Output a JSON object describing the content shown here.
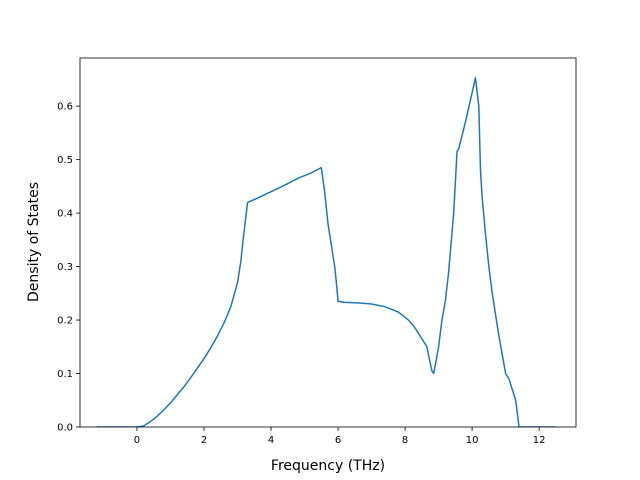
{
  "chart_data": {
    "type": "line",
    "title": "",
    "xlabel": "Frequency (THz)",
    "ylabel": "Density of States",
    "xlim": [
      -1.7,
      13.1
    ],
    "ylim": [
      0.0,
      0.69
    ],
    "xticks": [
      0,
      2,
      4,
      6,
      8,
      10,
      12
    ],
    "yticks": [
      0.0,
      0.1,
      0.2,
      0.3,
      0.4,
      0.5,
      0.6
    ],
    "ytick_labels": [
      "0.0",
      "0.1",
      "0.2",
      "0.3",
      "0.4",
      "0.5",
      "0.6"
    ],
    "grid": false,
    "legend": "none",
    "colors": {
      "line": "#1f77b4"
    },
    "series": [
      {
        "x": [
          -1.2,
          -0.6,
          0.0,
          0.2,
          0.4,
          0.6,
          0.8,
          1.0,
          1.2,
          1.4,
          1.6,
          1.8,
          2.0,
          2.2,
          2.4,
          2.6,
          2.8,
          3.0,
          3.1,
          3.15,
          3.3,
          3.6,
          4.0,
          4.4,
          4.8,
          5.2,
          5.5,
          5.6,
          5.7,
          5.8,
          5.9,
          5.95,
          6.0,
          6.2,
          6.6,
          7.0,
          7.4,
          7.8,
          8.1,
          8.3,
          8.5,
          8.65,
          8.8,
          8.85,
          8.9,
          9.0,
          9.1,
          9.2,
          9.3,
          9.45,
          9.55,
          9.6,
          9.8,
          10.0,
          10.1,
          10.2,
          10.25,
          10.3,
          10.4,
          10.5,
          10.6,
          10.8,
          11.0,
          11.1,
          11.3,
          11.4,
          12.5
        ],
        "y": [
          0.0,
          0.0,
          0.0,
          0.002,
          0.01,
          0.02,
          0.032,
          0.045,
          0.06,
          0.075,
          0.092,
          0.11,
          0.128,
          0.148,
          0.17,
          0.195,
          0.225,
          0.27,
          0.31,
          0.34,
          0.42,
          0.428,
          0.44,
          0.452,
          0.465,
          0.475,
          0.485,
          0.44,
          0.38,
          0.34,
          0.3,
          0.27,
          0.235,
          0.233,
          0.232,
          0.23,
          0.225,
          0.215,
          0.2,
          0.185,
          0.165,
          0.15,
          0.105,
          0.1,
          0.115,
          0.15,
          0.2,
          0.235,
          0.29,
          0.4,
          0.515,
          0.52,
          0.57,
          0.625,
          0.653,
          0.6,
          0.48,
          0.43,
          0.36,
          0.3,
          0.25,
          0.17,
          0.1,
          0.09,
          0.05,
          0.0,
          0.0
        ]
      }
    ]
  }
}
